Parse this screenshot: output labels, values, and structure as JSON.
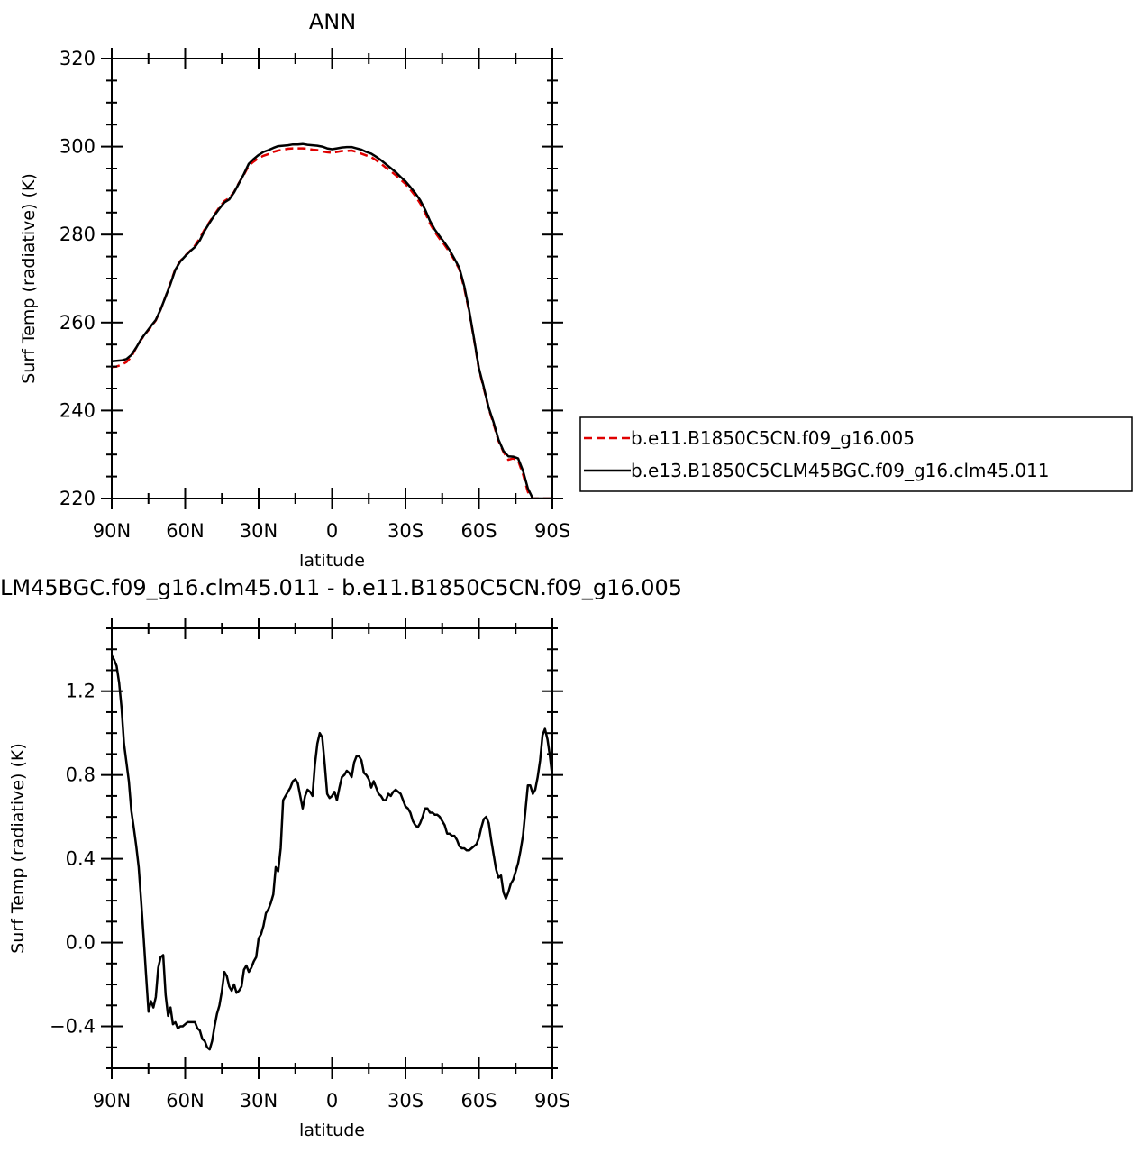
{
  "chart_data": [
    {
      "type": "line",
      "title": "ANN",
      "xlabel": "latitude",
      "ylabel": "Surf Temp (radiative) (K)",
      "xlim": [
        90,
        -90
      ],
      "ylim": [
        220,
        320
      ],
      "xticks": [
        90,
        60,
        30,
        0,
        -30,
        -60,
        -90
      ],
      "xtick_labels": [
        "90N",
        "60N",
        "30N",
        "0",
        "30S",
        "60S",
        "90S"
      ],
      "yticks": [
        220,
        240,
        260,
        280,
        300,
        320
      ],
      "ytick_labels": [
        "220",
        "240",
        "260",
        "280",
        "300",
        "320"
      ],
      "grid": false,
      "legend": "right",
      "series": [
        {
          "name": "b.e11.B1850C5CN.f09_g16.005",
          "color": "#e00000",
          "dash": "dashed",
          "x": [
            90,
            88,
            86,
            84,
            82,
            80,
            78,
            76,
            74,
            72,
            70,
            68,
            66,
            64,
            62,
            60,
            58,
            56,
            54,
            52,
            50,
            48,
            46,
            44,
            42,
            40,
            38,
            36,
            34,
            32,
            30,
            28,
            26,
            24,
            22,
            20,
            18,
            16,
            14,
            12,
            10,
            8,
            6,
            4,
            2,
            0,
            -2,
            -4,
            -6,
            -8,
            -10,
            -12,
            -14,
            -16,
            -18,
            -20,
            -22,
            -24,
            -26,
            -28,
            -30,
            -32,
            -34,
            -36,
            -38,
            -40,
            -42,
            -44,
            -46,
            -48,
            -50,
            -52,
            -54,
            -56,
            -58,
            -60,
            -62,
            -64,
            -66,
            -68,
            -70,
            -72,
            -74,
            -76,
            -78,
            -80,
            -82,
            -84,
            -86,
            -88,
            -90
          ],
          "y": [
            249.9,
            250.0,
            250.4,
            251.0,
            252.2,
            254.3,
            256.1,
            257.6,
            259.0,
            260.5,
            263.0,
            265.9,
            269.0,
            272.2,
            274.0,
            275.2,
            276.3,
            277.5,
            279.2,
            281.2,
            282.9,
            284.6,
            286.2,
            287.6,
            288.3,
            289.7,
            291.8,
            293.6,
            295.7,
            296.6,
            297.4,
            297.9,
            298.3,
            298.8,
            299.1,
            299.3,
            299.5,
            299.6,
            299.6,
            299.6,
            299.5,
            299.3,
            299.2,
            298.9,
            298.7,
            298.6,
            298.8,
            299.0,
            299.0,
            299.1,
            298.8,
            298.4,
            298.0,
            297.6,
            296.9,
            296.1,
            295.2,
            294.4,
            293.5,
            292.5,
            291.5,
            290.2,
            288.8,
            287.1,
            285.0,
            282.5,
            280.6,
            279.0,
            277.6,
            276.0,
            274.2,
            272.1,
            267.8,
            262.5,
            256.1,
            249.4,
            245.0,
            240.4,
            236.9,
            233.1,
            230.6,
            228.8,
            229.1,
            228.6,
            225.5,
            221.5,
            220.0,
            220.0,
            220.0,
            220.0,
            220.0
          ]
        },
        {
          "name": "b.e13.B1850C5CLM45BGC.f09_g16.clm45.011",
          "color": "#000000",
          "dash": "solid",
          "x": [
            90,
            88,
            86,
            84,
            82,
            80,
            78,
            76,
            74,
            72,
            70,
            68,
            66,
            64,
            62,
            60,
            58,
            56,
            54,
            52,
            50,
            48,
            46,
            44,
            42,
            40,
            38,
            36,
            34,
            32,
            30,
            28,
            26,
            24,
            22,
            20,
            18,
            16,
            14,
            12,
            10,
            8,
            6,
            4,
            2,
            0,
            -2,
            -4,
            -6,
            -8,
            -10,
            -12,
            -14,
            -16,
            -18,
            -20,
            -22,
            -24,
            -26,
            -28,
            -30,
            -32,
            -34,
            -36,
            -38,
            -40,
            -42,
            -44,
            -46,
            -48,
            -50,
            -52,
            -54,
            -56,
            -58,
            -60,
            -62,
            -64,
            -66,
            -68,
            -70,
            -72,
            -74,
            -76,
            -78,
            -80,
            -82,
            -84,
            -86,
            -88,
            -90
          ],
          "y": [
            251.2,
            251.3,
            251.4,
            251.7,
            252.6,
            254.3,
            256.2,
            257.7,
            259.2,
            260.6,
            263.0,
            265.9,
            268.8,
            272.0,
            273.9,
            275.1,
            276.2,
            277.2,
            278.7,
            280.9,
            282.7,
            284.4,
            285.9,
            287.3,
            288.0,
            289.6,
            291.7,
            293.8,
            296.1,
            297.2,
            298.1,
            298.8,
            299.2,
            299.7,
            300.1,
            300.2,
            300.3,
            300.5,
            300.5,
            300.6,
            300.4,
            300.3,
            300.2,
            300.0,
            299.6,
            299.4,
            299.6,
            299.8,
            299.9,
            299.9,
            299.6,
            299.3,
            298.8,
            298.4,
            297.7,
            296.9,
            296.0,
            295.1,
            294.2,
            293.1,
            292.1,
            290.8,
            289.4,
            287.8,
            285.7,
            283.1,
            281.1,
            279.6,
            278.1,
            276.5,
            274.5,
            272.4,
            268.3,
            262.8,
            256.3,
            249.6,
            245.3,
            240.6,
            237.3,
            233.4,
            230.8,
            229.6,
            229.5,
            229.1,
            226.3,
            222.3,
            220.0,
            220.0,
            220.0,
            220.0,
            220.0
          ]
        }
      ]
    },
    {
      "type": "line",
      "title": "LM45BGC.f09_g16.clm45.011 - b.e11.B1850C5CN.f09_g16.005",
      "xlabel": "latitude",
      "ylabel": "Surf Temp (radiative) (K)",
      "xlim": [
        90,
        -90
      ],
      "ylim": [
        -0.6,
        1.5
      ],
      "xticks": [
        90,
        60,
        30,
        0,
        -30,
        -60,
        -90
      ],
      "xtick_labels": [
        "90N",
        "60N",
        "30N",
        "0",
        "30S",
        "60S",
        "90S"
      ],
      "yticks": [
        -0.4,
        0.0,
        0.4,
        0.8,
        1.2
      ],
      "ytick_labels": [
        "−0.4",
        "0.0",
        "0.4",
        "0.8",
        "1.2"
      ],
      "grid": false,
      "series": [
        {
          "color": "#000000",
          "dash": "solid",
          "x": [
            90,
            89,
            88,
            87,
            86,
            85,
            84,
            83,
            82,
            81,
            80,
            79,
            78,
            77,
            76,
            75,
            74,
            73,
            72,
            71,
            70,
            69,
            68,
            67,
            66,
            65,
            64,
            63,
            62,
            61,
            60,
            59,
            58,
            57,
            56,
            55,
            54,
            53,
            52,
            51,
            50,
            49,
            48,
            47,
            46,
            45,
            44,
            43,
            42,
            41,
            40,
            39,
            38,
            37,
            36,
            35,
            34,
            33,
            32,
            31,
            30,
            29,
            28,
            27,
            26,
            25,
            24,
            23,
            22,
            21,
            20,
            19,
            18,
            17,
            16,
            15,
            14,
            13,
            12,
            11,
            10,
            9,
            8,
            7,
            6,
            5,
            4,
            3,
            2,
            1,
            0,
            -1,
            -2,
            -3,
            -4,
            -5,
            -6,
            -7,
            -8,
            -9,
            -10,
            -11,
            -12,
            -13,
            -14,
            -15,
            -16,
            -17,
            -18,
            -19,
            -20,
            -21,
            -22,
            -23,
            -24,
            -25,
            -26,
            -27,
            -28,
            -29,
            -30,
            -31,
            -32,
            -33,
            -34,
            -35,
            -36,
            -37,
            -38,
            -39,
            -40,
            -41,
            -42,
            -43,
            -44,
            -45,
            -46,
            -47,
            -48,
            -49,
            -50,
            -51,
            -52,
            -53,
            -54,
            -55,
            -56,
            -57,
            -58,
            -59,
            -60,
            -61,
            -62,
            -63,
            -64,
            -65,
            -66,
            -67,
            -68,
            -69,
            -70,
            -71,
            -72,
            -73,
            -74,
            -75,
            -76,
            -77,
            -78,
            -79,
            -80,
            -81,
            -82,
            -83,
            -84,
            -85,
            -86,
            -87,
            -88,
            -89,
            -90
          ],
          "y": [
            1.37,
            1.35,
            1.32,
            1.24,
            1.12,
            0.95,
            0.86,
            0.77,
            0.63,
            0.55,
            0.46,
            0.36,
            0.2,
            0.03,
            -0.15,
            -0.33,
            -0.28,
            -0.31,
            -0.26,
            -0.12,
            -0.07,
            -0.06,
            -0.25,
            -0.35,
            -0.31,
            -0.39,
            -0.38,
            -0.41,
            -0.4,
            -0.4,
            -0.39,
            -0.38,
            -0.38,
            -0.38,
            -0.38,
            -0.41,
            -0.42,
            -0.46,
            -0.47,
            -0.5,
            -0.51,
            -0.47,
            -0.4,
            -0.34,
            -0.3,
            -0.23,
            -0.14,
            -0.16,
            -0.21,
            -0.23,
            -0.2,
            -0.24,
            -0.23,
            -0.21,
            -0.13,
            -0.11,
            -0.14,
            -0.12,
            -0.09,
            -0.07,
            0.02,
            0.04,
            0.08,
            0.14,
            0.16,
            0.19,
            0.23,
            0.36,
            0.34,
            0.45,
            0.68,
            0.7,
            0.72,
            0.74,
            0.77,
            0.78,
            0.76,
            0.7,
            0.64,
            0.7,
            0.73,
            0.72,
            0.7,
            0.85,
            0.95,
            1.0,
            0.98,
            0.85,
            0.71,
            0.69,
            0.7,
            0.72,
            0.68,
            0.74,
            0.79,
            0.8,
            0.82,
            0.81,
            0.79,
            0.86,
            0.89,
            0.89,
            0.87,
            0.81,
            0.8,
            0.78,
            0.74,
            0.77,
            0.74,
            0.71,
            0.7,
            0.68,
            0.68,
            0.71,
            0.7,
            0.72,
            0.73,
            0.72,
            0.71,
            0.68,
            0.65,
            0.64,
            0.62,
            0.58,
            0.56,
            0.55,
            0.57,
            0.6,
            0.64,
            0.64,
            0.62,
            0.62,
            0.61,
            0.61,
            0.6,
            0.58,
            0.56,
            0.52,
            0.52,
            0.51,
            0.51,
            0.49,
            0.46,
            0.45,
            0.45,
            0.44,
            0.44,
            0.45,
            0.46,
            0.47,
            0.5,
            0.55,
            0.59,
            0.6,
            0.57,
            0.49,
            0.42,
            0.35,
            0.31,
            0.32,
            0.24,
            0.21,
            0.24,
            0.28,
            0.3,
            0.34,
            0.38,
            0.44,
            0.51,
            0.63,
            0.75,
            0.75,
            0.71,
            0.73,
            0.79,
            0.87,
            0.99,
            1.02,
            0.97,
            0.89,
            0.79
          ]
        }
      ]
    }
  ]
}
